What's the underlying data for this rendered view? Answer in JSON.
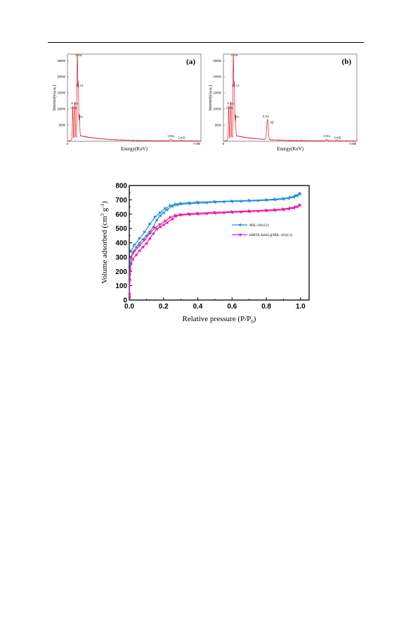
{
  "figure_colors": {
    "spectrum": "#e4121e",
    "mil": "#1f8fe0",
    "hmta": "#ee1aa6"
  },
  "edx_a": {
    "chart_data": {
      "type": "line",
      "panel_label": "(a)",
      "xlabel": "Energy(KeV)",
      "ylabel": "Intensity(a.u.)",
      "xlim": [
        0,
        7.0
      ],
      "ylim": [
        0,
        27000
      ],
      "x_ticks": [
        "0",
        "7.000"
      ],
      "y_ticks": [
        "5000",
        "10000",
        "15000",
        "20000",
        "25000"
      ],
      "peaks": [
        {
          "x": 0.28,
          "y": 10200
        },
        {
          "x": 0.39,
          "y": 11200
        },
        {
          "x": 0.52,
          "y": 26000
        },
        {
          "x": 0.57,
          "y": 16500
        },
        {
          "x": 0.63,
          "y": 6800
        },
        {
          "x": 5.41,
          "y": 500
        },
        {
          "x": 5.95,
          "y": 250
        }
      ],
      "annotations": [
        {
          "text": "O Ka",
          "x": 0.4,
          "y": 26300
        },
        {
          "text": "Cr La",
          "x": 0.45,
          "y": 17000
        },
        {
          "text": "N Ka",
          "x": 0.2,
          "y": 11400
        },
        {
          "text": "C Ka",
          "x": 0.15,
          "y": 10000
        },
        {
          "text": "Ka",
          "x": 0.62,
          "y": 7300
        },
        {
          "text": "CrKa",
          "x": 5.25,
          "y": 1300
        },
        {
          "text": "CrKβ",
          "x": 5.8,
          "y": 800
        }
      ]
    }
  },
  "edx_b": {
    "chart_data": {
      "type": "line",
      "panel_label": "(b)",
      "xlabel": "Energy(KeV)",
      "ylabel": "Intensity(a.u.)",
      "xlim": [
        0,
        7.0
      ],
      "ylim": [
        0,
        27000
      ],
      "x_ticks": [
        "0",
        "7.000"
      ],
      "y_ticks": [
        "5000",
        "10000",
        "15000",
        "20000",
        "25000"
      ],
      "peaks": [
        {
          "x": 0.28,
          "y": 10300
        },
        {
          "x": 0.39,
          "y": 11300
        },
        {
          "x": 0.52,
          "y": 26000
        },
        {
          "x": 0.57,
          "y": 16500
        },
        {
          "x": 0.63,
          "y": 6700
        },
        {
          "x": 2.31,
          "y": 6300
        },
        {
          "x": 5.41,
          "y": 500
        },
        {
          "x": 5.95,
          "y": 250
        }
      ],
      "annotations": [
        {
          "text": "O Ka",
          "x": 0.4,
          "y": 26300
        },
        {
          "text": "Cr La",
          "x": 0.45,
          "y": 17000
        },
        {
          "text": "N Ka",
          "x": 0.2,
          "y": 11400
        },
        {
          "text": "C Ka",
          "x": 0.15,
          "y": 10000
        },
        {
          "text": "Ka",
          "x": 0.62,
          "y": 7300
        },
        {
          "text": "S Ka",
          "x": 2.05,
          "y": 7400
        },
        {
          "text": "Kβ",
          "x": 2.45,
          "y": 5600
        },
        {
          "text": "CrKa",
          "x": 5.25,
          "y": 1300
        },
        {
          "text": "CrKβ",
          "x": 5.8,
          "y": 800
        }
      ]
    }
  },
  "bet": {
    "chart_data": {
      "type": "line",
      "xlabel": "Relative pressure (P/P0)",
      "ylabel": "Volume adsorbed (cm3 g-1)",
      "xlim": [
        0.0,
        1.05
      ],
      "ylim": [
        0,
        800
      ],
      "x_ticks": [
        "0.0",
        "0.2",
        "0.4",
        "0.6",
        "0.8",
        "1.0"
      ],
      "y_ticks": [
        "0",
        "100",
        "200",
        "300",
        "400",
        "500",
        "600",
        "700",
        "800"
      ],
      "legend_position": "right-middle",
      "series": [
        {
          "name": "MIL-101(Cr)",
          "adsorption": [
            [
              0.001,
              40
            ],
            [
              0.003,
              180
            ],
            [
              0.005,
              250
            ],
            [
              0.01,
              300
            ],
            [
              0.02,
              330
            ],
            [
              0.04,
              370
            ],
            [
              0.06,
              400
            ],
            [
              0.08,
              425
            ],
            [
              0.1,
              450
            ],
            [
              0.12,
              480
            ],
            [
              0.14,
              510
            ],
            [
              0.16,
              560
            ],
            [
              0.18,
              590
            ],
            [
              0.2,
              610
            ],
            [
              0.22,
              630
            ],
            [
              0.25,
              655
            ],
            [
              0.28,
              665
            ],
            [
              0.3,
              670
            ],
            [
              0.35,
              673
            ],
            [
              0.4,
              677
            ],
            [
              0.45,
              680
            ],
            [
              0.5,
              683
            ],
            [
              0.55,
              686
            ],
            [
              0.6,
              688
            ],
            [
              0.65,
              690
            ],
            [
              0.7,
              692
            ],
            [
              0.75,
              694
            ],
            [
              0.8,
              697
            ],
            [
              0.85,
              700
            ],
            [
              0.9,
              705
            ],
            [
              0.93,
              710
            ],
            [
              0.96,
              718
            ],
            [
              0.98,
              728
            ],
            [
              0.995,
              740
            ]
          ],
          "desorption": [
            [
              0.995,
              745
            ],
            [
              0.97,
              730
            ],
            [
              0.94,
              718
            ],
            [
              0.9,
              710
            ],
            [
              0.85,
              705
            ],
            [
              0.8,
              701
            ],
            [
              0.7,
              696
            ],
            [
              0.6,
              692
            ],
            [
              0.5,
              688
            ],
            [
              0.4,
              684
            ],
            [
              0.35,
              680
            ],
            [
              0.3,
              676
            ],
            [
              0.27,
              670
            ],
            [
              0.24,
              660
            ],
            [
              0.21,
              640
            ],
            [
              0.18,
              610
            ],
            [
              0.15,
              580
            ],
            [
              0.12,
              530
            ],
            [
              0.09,
              475
            ],
            [
              0.06,
              430
            ],
            [
              0.03,
              385
            ],
            [
              0.01,
              340
            ]
          ]
        },
        {
          "name": "HMTA-BAIL@MIL-101(Cr)",
          "adsorption": [
            [
              0.001,
              20
            ],
            [
              0.003,
              140
            ],
            [
              0.005,
              205
            ],
            [
              0.01,
              255
            ],
            [
              0.02,
              285
            ],
            [
              0.04,
              315
            ],
            [
              0.06,
              345
            ],
            [
              0.08,
              370
            ],
            [
              0.1,
              395
            ],
            [
              0.12,
              430
            ],
            [
              0.14,
              465
            ],
            [
              0.16,
              495
            ],
            [
              0.18,
              510
            ],
            [
              0.2,
              525
            ],
            [
              0.22,
              540
            ],
            [
              0.25,
              565
            ],
            [
              0.27,
              585
            ],
            [
              0.3,
              593
            ],
            [
              0.35,
              597
            ],
            [
              0.4,
              600
            ],
            [
              0.45,
              603
            ],
            [
              0.5,
              606
            ],
            [
              0.55,
              609
            ],
            [
              0.6,
              612
            ],
            [
              0.65,
              615
            ],
            [
              0.7,
              617
            ],
            [
              0.75,
              620
            ],
            [
              0.8,
              623
            ],
            [
              0.85,
              626
            ],
            [
              0.9,
              630
            ],
            [
              0.93,
              636
            ],
            [
              0.96,
              642
            ],
            [
              0.98,
              650
            ],
            [
              0.995,
              660
            ]
          ],
          "desorption": [
            [
              0.995,
              665
            ],
            [
              0.97,
              652
            ],
            [
              0.94,
              643
            ],
            [
              0.9,
              637
            ],
            [
              0.85,
              631
            ],
            [
              0.8,
              628
            ],
            [
              0.7,
              623
            ],
            [
              0.6,
              618
            ],
            [
              0.5,
              613
            ],
            [
              0.4,
              607
            ],
            [
              0.35,
              603
            ],
            [
              0.3,
              598
            ],
            [
              0.27,
              592
            ],
            [
              0.24,
              578
            ],
            [
              0.21,
              552
            ],
            [
              0.18,
              528
            ],
            [
              0.15,
              505
            ],
            [
              0.12,
              465
            ],
            [
              0.09,
              420
            ],
            [
              0.06,
              380
            ],
            [
              0.03,
              340
            ],
            [
              0.01,
              300
            ]
          ]
        }
      ]
    }
  }
}
